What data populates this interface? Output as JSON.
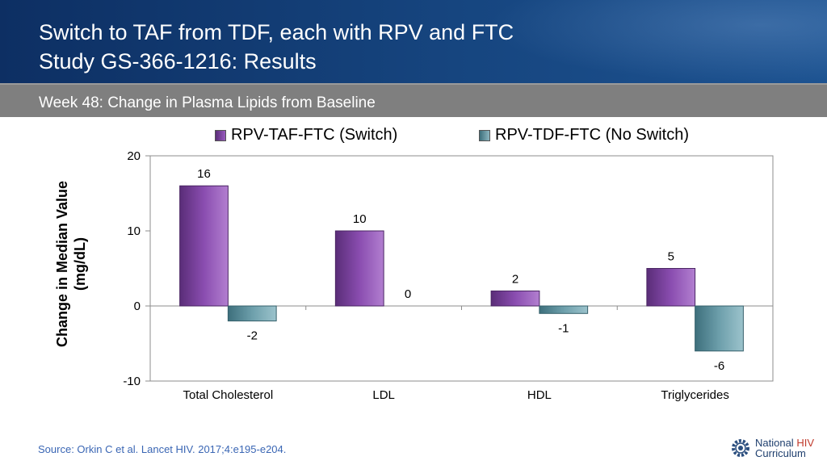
{
  "header": {
    "title_line1": "Switch to TAF from TDF, each with RPV and FTC",
    "title_line2": "Study GS-366-1216: Results"
  },
  "subheader": {
    "text": "Week 48: Change in Plasma Lipids from Baseline"
  },
  "chart_data": {
    "type": "bar",
    "title": "Week 48: Change in Plasma Lipids from Baseline",
    "categories": [
      "Total Cholesterol",
      "LDL",
      "HDL",
      "Triglycerides"
    ],
    "series": [
      {
        "name": "RPV-TAF-FTC (Switch)",
        "values": [
          16,
          10,
          2,
          5
        ],
        "color": "#7b3f9e"
      },
      {
        "name": "RPV-TDF-FTC (No Switch)",
        "values": [
          -2,
          0,
          -1,
          -6
        ],
        "color": "#4f8a97"
      }
    ],
    "ylabel": "Change in Median Value (mg/dL)",
    "ylim": [
      -10,
      20
    ],
    "yticks": [
      -10,
      0,
      10,
      20
    ],
    "legend": "top"
  },
  "legend": {
    "item1": "RPV-TAF-FTC (Switch)",
    "item2": "RPV-TDF-FTC (No Switch)"
  },
  "axis": {
    "ylabel_line1": "Change in Median Value",
    "ylabel_line2": "(mg/dL)"
  },
  "source": {
    "text": "Source: Orkin C et al. Lancet HIV. 2017;4:e195-e204."
  },
  "logo": {
    "line1_a": "National ",
    "line1_b": "HIV",
    "line2": "Curriculum"
  }
}
